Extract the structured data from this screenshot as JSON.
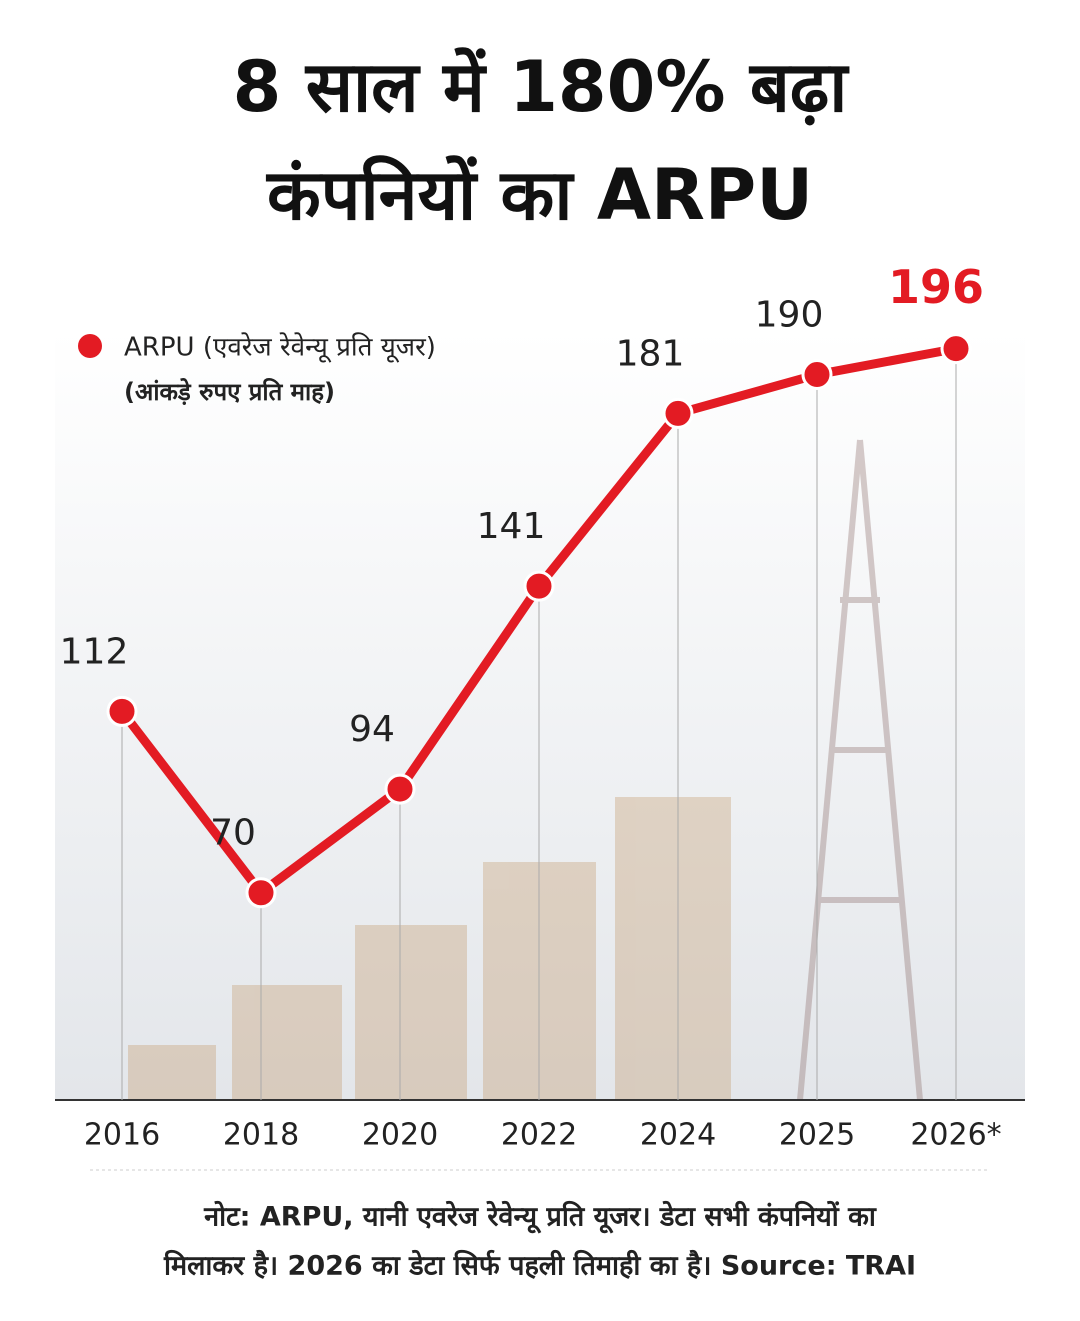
{
  "chart_data": {
    "type": "line",
    "title": [
      "8 साल में 180% बढ़ा",
      "कंपनियों का ARPU"
    ],
    "legend_label": "ARPU (एवरेज रेवेन्यू प्रति यूजर)",
    "subtitle": "(आंकड़े रुपए प्रति माह)",
    "categories": [
      "2016",
      "2018",
      "2020",
      "2022",
      "2024",
      "2025",
      "2026*"
    ],
    "series": [
      {
        "name": "ARPU (एवरेज रेवेन्यू प्रति यूजर)",
        "color": "#e31b23",
        "values": [
          112,
          70,
          94,
          141,
          181,
          190,
          196
        ]
      }
    ],
    "ylim": [
      22,
      220
    ],
    "note": [
      "नोट: ARPU, यानी एवरेज रेवेन्यू प्रति यूजर। डेटा सभी कंपनियों का",
      "मिलाकर है। 2026 का डेटा सिर्फ पहली तिमाही का है। Source: TRAI"
    ]
  }
}
